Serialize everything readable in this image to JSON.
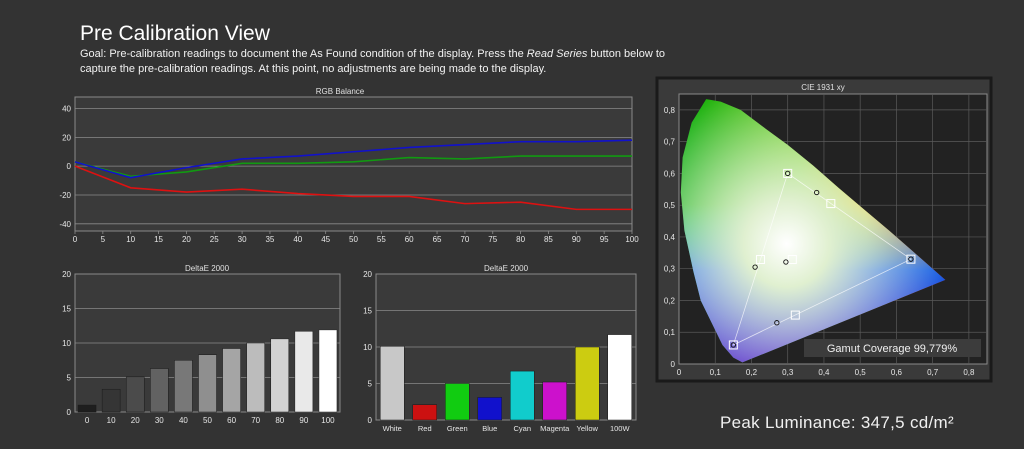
{
  "page": {
    "title": "Pre Calibration View",
    "goal_part1": "Goal: Pre-calibration readings to document the As Found condition of the display. Press the ",
    "goal_emph": "Read Series",
    "goal_part2": " button below to capture the pre-calibration readings. At this point, no adjustments are being made to the display.",
    "peak_luminance": "Peak Luminance: 347,5 cd/m²"
  },
  "chart_data": [
    {
      "type": "line",
      "title": "RGB Balance",
      "x": [
        0,
        5,
        10,
        15,
        20,
        25,
        30,
        35,
        40,
        45,
        50,
        55,
        60,
        65,
        70,
        75,
        80,
        85,
        90,
        95,
        100
      ],
      "xticks": [
        "0",
        "5",
        "10",
        "15",
        "20",
        "25",
        "30",
        "35",
        "40",
        "45",
        "50",
        "55",
        "60",
        "65",
        "70",
        "75",
        "80",
        "85",
        "90",
        "95",
        "100"
      ],
      "yticks": [
        "40",
        "20",
        "0",
        "-20",
        "-40"
      ],
      "ylim": [
        -45,
        48
      ],
      "xlim": [
        0,
        100
      ],
      "series": [
        {
          "color": "#dd1111",
          "x": [
            0,
            10,
            20,
            30,
            40,
            50,
            60,
            70,
            80,
            90,
            100
          ],
          "values": [
            0,
            -15,
            -18,
            -16,
            -19,
            -21,
            -21,
            -26,
            -25,
            -30,
            -30
          ]
        },
        {
          "color": "#119911",
          "x": [
            0,
            10,
            20,
            30,
            40,
            50,
            60,
            70,
            80,
            90,
            100
          ],
          "values": [
            3,
            -7,
            -4,
            2,
            2,
            3,
            6,
            5,
            7,
            7,
            7
          ]
        },
        {
          "color": "#1111cc",
          "x": [
            0,
            10,
            20,
            30,
            40,
            50,
            60,
            70,
            80,
            90,
            100
          ],
          "values": [
            3,
            -8,
            -1,
            5,
            7,
            10,
            13,
            15,
            17,
            17,
            18
          ]
        }
      ]
    },
    {
      "type": "bar",
      "title": "DeltaE 2000",
      "categories": [
        "0",
        "10",
        "20",
        "30",
        "40",
        "50",
        "60",
        "70",
        "80",
        "90",
        "100"
      ],
      "values": [
        1.0,
        3.3,
        5.1,
        6.3,
        7.5,
        8.3,
        9.2,
        10.0,
        10.6,
        11.7,
        11.9
      ],
      "ylim": [
        0,
        20
      ],
      "yticks": [
        "20",
        "15",
        "10",
        "5",
        "0"
      ]
    },
    {
      "type": "bar",
      "title": "DeltaE 2000",
      "categories": [
        "White",
        "Red",
        "Green",
        "Blue",
        "Cyan",
        "Magenta",
        "Yellow",
        "100W"
      ],
      "values": [
        10.1,
        2.1,
        5.0,
        3.1,
        6.7,
        5.2,
        10.0,
        11.7
      ],
      "colors": [
        "#c8c8c8",
        "#cc1111",
        "#11cc11",
        "#1111cc",
        "#11cccc",
        "#cc11cc",
        "#cccc11",
        "#ffffff"
      ],
      "ylim": [
        0,
        20
      ],
      "yticks": [
        "20",
        "15",
        "10",
        "5",
        "0"
      ]
    },
    {
      "type": "scatter",
      "title": "CIE 1931 xy",
      "xlim": [
        0,
        0.85
      ],
      "ylim": [
        0,
        0.85
      ],
      "xticks": [
        "0",
        "0,1",
        "0,2",
        "0,3",
        "0,4",
        "0,5",
        "0,6",
        "0,7",
        "0,8"
      ],
      "yticks": [
        "0,8",
        "0,7",
        "0,6",
        "0,5",
        "0,4",
        "0,3",
        "0,2",
        "0,1",
        "0"
      ],
      "gamut": {
        "red": [
          0.64,
          0.33
        ],
        "green": [
          0.3,
          0.6
        ],
        "blue": [
          0.15,
          0.06
        ]
      },
      "target_squares": [
        [
          0.64,
          0.33
        ],
        [
          0.3,
          0.6
        ],
        [
          0.15,
          0.06
        ],
        [
          0.225,
          0.329
        ],
        [
          0.321,
          0.154
        ],
        [
          0.419,
          0.505
        ],
        [
          0.3127,
          0.329
        ]
      ],
      "measured_points": [
        [
          0.64,
          0.33
        ],
        [
          0.3,
          0.6
        ],
        [
          0.15,
          0.06
        ],
        [
          0.21,
          0.305
        ],
        [
          0.27,
          0.13
        ],
        [
          0.38,
          0.54
        ],
        [
          0.295,
          0.321
        ]
      ],
      "annotation": "Gamut Coverage 99,779%"
    }
  ]
}
